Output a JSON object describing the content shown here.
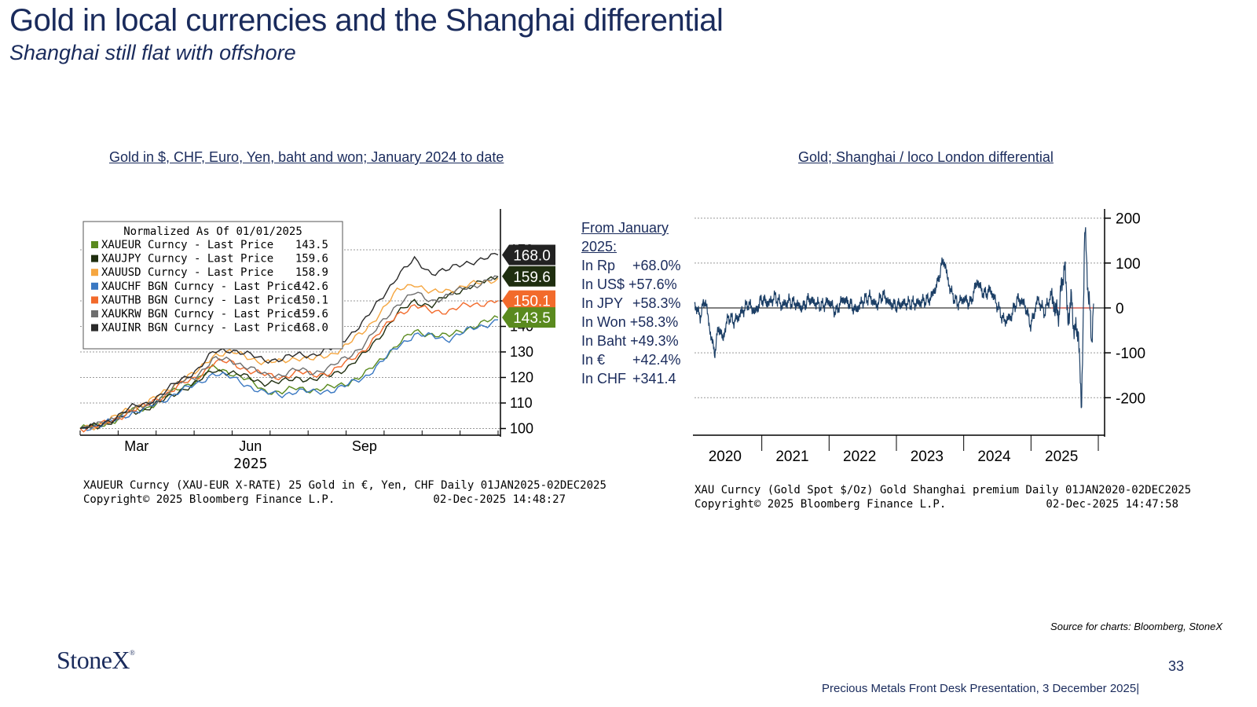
{
  "header": {
    "title": "Gold in local currencies and the Shanghai differential",
    "subtitle": "Shanghai  still flat with offshore"
  },
  "stats": {
    "heading_line1": "From January",
    "heading_line2": "2025:",
    "rows": [
      {
        "label": "In Rp",
        "value": "+68.0%"
      },
      {
        "label": "In US$",
        "value": "+57.6%"
      },
      {
        "label": "In JPY",
        "value": "+58.3%"
      },
      {
        "label": "In Won",
        "value": "+58.3%"
      },
      {
        "label": "In Baht",
        "value": "+49.3%"
      },
      {
        "label": "In €",
        "value": "+42.4%"
      },
      {
        "label": "In CHF",
        "value": "+341.4"
      }
    ]
  },
  "footer": {
    "source": "Source for charts: Bloomberg, StoneX",
    "logo": "StoneX",
    "logo_mark": "®",
    "page_number": "33",
    "presentation": "Precious Metals Front Desk Presentation, 3 December 2025|"
  },
  "chart_data": [
    {
      "type": "line",
      "title": "Gold in $, CHF, Euro, Yen, baht and won; January 2024 to date",
      "legend_title": "Normalized As Of 01/01/2025",
      "legend_placement": "top-left",
      "x_ticks": [
        "Mar",
        "Jun",
        "Sep"
      ],
      "x_year": "2025",
      "x_range": [
        "2025-01-01",
        "2025-12-02"
      ],
      "y_ticks": [
        "100",
        "110",
        "120",
        "130",
        "140",
        "150"
      ],
      "y_top_tick": "170",
      "ylim": [
        98,
        178
      ],
      "grid": true,
      "series": [
        {
          "name": "XAUEUR Curncy - Last Price",
          "last": "143.5",
          "color": "#5a8a1e",
          "t": [
            0,
            0.04,
            0.08,
            0.12,
            0.16,
            0.2,
            0.24,
            0.28,
            0.32,
            0.36,
            0.4,
            0.44,
            0.48,
            0.52,
            0.56,
            0.6,
            0.64,
            0.68,
            0.72,
            0.76,
            0.8,
            0.84,
            0.88,
            0.92,
            0.96,
            1.0
          ],
          "values": [
            100,
            101,
            103,
            107,
            108,
            112,
            116,
            119,
            124,
            122,
            119,
            115,
            114,
            116,
            115,
            116,
            118,
            121,
            127,
            133,
            138,
            137,
            136,
            139,
            141,
            143.5
          ]
        },
        {
          "name": "XAUJPY Curncy - Last Price",
          "last": "159.6",
          "color": "#1f2e0f",
          "t": [
            0,
            0.04,
            0.08,
            0.12,
            0.16,
            0.2,
            0.24,
            0.28,
            0.32,
            0.36,
            0.4,
            0.44,
            0.48,
            0.52,
            0.56,
            0.6,
            0.64,
            0.68,
            0.72,
            0.76,
            0.8,
            0.84,
            0.88,
            0.92,
            0.96,
            1.0
          ],
          "values": [
            100,
            101,
            103,
            106,
            108,
            111,
            115,
            118,
            123,
            122,
            120,
            118,
            118,
            120,
            119,
            121,
            124,
            129,
            137,
            145,
            150,
            148,
            152,
            155,
            157,
            159.6
          ]
        },
        {
          "name": "XAUUSD Curncy - Last Price",
          "last": "158.9",
          "color": "#f5a640",
          "t": [
            0,
            0.04,
            0.08,
            0.12,
            0.16,
            0.2,
            0.24,
            0.28,
            0.32,
            0.36,
            0.4,
            0.44,
            0.48,
            0.52,
            0.56,
            0.6,
            0.64,
            0.68,
            0.72,
            0.76,
            0.8,
            0.84,
            0.88,
            0.92,
            0.96,
            1.0
          ],
          "values": [
            100,
            101,
            104,
            108,
            110,
            114,
            119,
            122,
            129,
            130,
            128,
            126,
            126,
            128,
            127,
            129,
            133,
            138,
            146,
            154,
            157,
            153,
            154,
            156,
            157,
            158.9
          ]
        },
        {
          "name": "XAUCHF BGN Curncy - Last Price",
          "last": "142.6",
          "color": "#3a78c2",
          "t": [
            0,
            0.04,
            0.08,
            0.12,
            0.16,
            0.2,
            0.24,
            0.28,
            0.32,
            0.36,
            0.4,
            0.44,
            0.48,
            0.52,
            0.56,
            0.6,
            0.64,
            0.68,
            0.72,
            0.76,
            0.8,
            0.84,
            0.88,
            0.92,
            0.96,
            1.0
          ],
          "values": [
            100,
            101,
            103,
            106,
            108,
            111,
            115,
            117,
            122,
            120,
            117,
            114,
            113,
            115,
            114,
            115,
            117,
            120,
            126,
            132,
            137,
            136,
            135,
            138,
            140,
            142.6
          ]
        },
        {
          "name": "XAUTHB BGN Curncy - Last Price",
          "last": "150.1",
          "color": "#f26a2b",
          "t": [
            0,
            0.04,
            0.08,
            0.12,
            0.16,
            0.2,
            0.24,
            0.28,
            0.32,
            0.36,
            0.4,
            0.44,
            0.48,
            0.52,
            0.56,
            0.6,
            0.64,
            0.68,
            0.72,
            0.76,
            0.8,
            0.84,
            0.88,
            0.92,
            0.96,
            1.0
          ],
          "values": [
            100,
            101,
            103,
            107,
            109,
            113,
            117,
            120,
            126,
            126,
            123,
            121,
            120,
            122,
            121,
            122,
            126,
            131,
            138,
            145,
            148,
            146,
            146,
            148,
            149,
            150.1
          ]
        },
        {
          "name": "XAUKRW BGN Curncy - Last Price",
          "last": "159.6",
          "color": "#6e6e6e",
          "t": [
            0,
            0.04,
            0.08,
            0.12,
            0.16,
            0.2,
            0.24,
            0.28,
            0.32,
            0.36,
            0.4,
            0.44,
            0.48,
            0.52,
            0.56,
            0.6,
            0.64,
            0.68,
            0.72,
            0.76,
            0.8,
            0.84,
            0.88,
            0.92,
            0.96,
            1.0
          ],
          "values": [
            100,
            101,
            104,
            107,
            109,
            113,
            118,
            121,
            127,
            127,
            124,
            121,
            121,
            123,
            122,
            124,
            128,
            133,
            141,
            149,
            153,
            150,
            152,
            155,
            157,
            159.6
          ]
        },
        {
          "name": "XAUINR BGN Curncy - Last Price",
          "last": "168.0",
          "color": "#2a2a2a",
          "t": [
            0,
            0.04,
            0.08,
            0.12,
            0.16,
            0.2,
            0.24,
            0.28,
            0.32,
            0.36,
            0.4,
            0.44,
            0.48,
            0.52,
            0.56,
            0.6,
            0.64,
            0.68,
            0.72,
            0.76,
            0.8,
            0.84,
            0.88,
            0.92,
            0.96,
            1.0
          ],
          "values": [
            100,
            101,
            104,
            108,
            110,
            114,
            119,
            123,
            130,
            131,
            129,
            127,
            127,
            129,
            129,
            131,
            136,
            142,
            151,
            160,
            166,
            161,
            162,
            165,
            166,
            168.0
          ]
        }
      ],
      "right_tags": [
        {
          "label": "168.0",
          "value": 168.0,
          "color": "#222222"
        },
        {
          "label": "159.6",
          "value": 159.6,
          "color": "#1f2e0f"
        },
        {
          "label": "150.1",
          "value": 150.1,
          "color": "#f26a2b"
        },
        {
          "label": "143.5",
          "value": 143.5,
          "color": "#5a8a1e"
        }
      ],
      "footer_line1": "XAUEUR Curncy (XAU-EUR X-RATE) 25 Gold in €, Yen, CHF Daily 01JAN2025-02DEC2025",
      "footer_line2_left": "Copyright© 2025 Bloomberg Finance L.P.",
      "footer_line2_right": "02-Dec-2025 14:48:27"
    },
    {
      "type": "line",
      "title": "Gold; Shanghai / loco London differential",
      "x_ticks": [
        "2020",
        "2021",
        "2022",
        "2023",
        "2024",
        "2025"
      ],
      "x_range": [
        2020.0,
        2026.0
      ],
      "y_ticks": [
        "200",
        "100",
        "0",
        "-100",
        "-200"
      ],
      "ylim": [
        -280,
        210
      ],
      "grid": true,
      "series": [
        {
          "name": "",
          "color": "#1c3f66",
          "x": [
            2020.0,
            2020.08,
            2020.16,
            2020.24,
            2020.3,
            2020.36,
            2020.42,
            2020.5,
            2020.6,
            2020.7,
            2020.8,
            2020.9,
            2021.0,
            2021.1,
            2021.2,
            2021.3,
            2021.4,
            2021.5,
            2021.6,
            2021.7,
            2021.8,
            2021.9,
            2022.0,
            2022.1,
            2022.2,
            2022.3,
            2022.4,
            2022.5,
            2022.6,
            2022.7,
            2022.8,
            2022.9,
            2023.0,
            2023.1,
            2023.2,
            2023.3,
            2023.4,
            2023.5,
            2023.6,
            2023.7,
            2023.8,
            2023.9,
            2024.0,
            2024.1,
            2024.2,
            2024.3,
            2024.4,
            2024.5,
            2024.6,
            2024.7,
            2024.8,
            2024.9,
            2025.0,
            2025.1,
            2025.2,
            2025.3,
            2025.4,
            2025.5,
            2025.55,
            2025.6,
            2025.65,
            2025.7,
            2025.75,
            2025.8,
            2025.85,
            2025.9,
            2025.93
          ],
          "values": [
            10,
            -20,
            20,
            -60,
            -100,
            -40,
            -70,
            -20,
            -30,
            -10,
            10,
            -10,
            20,
            10,
            25,
            5,
            15,
            10,
            0,
            20,
            10,
            5,
            15,
            -10,
            20,
            10,
            -5,
            15,
            25,
            5,
            30,
            10,
            5,
            10,
            10,
            10,
            15,
            20,
            50,
            110,
            40,
            10,
            20,
            10,
            60,
            30,
            40,
            5,
            -30,
            -20,
            20,
            10,
            -40,
            20,
            -10,
            30,
            -20,
            100,
            -30,
            20,
            -60,
            -40,
            -230,
            180,
            40,
            -70,
            10
          ]
        }
      ],
      "zero_line_color": "#c0392b",
      "footer_line1": "XAU Curncy (Gold Spot   $/Oz) Gold Shanghai premium Daily 01JAN2020-02DEC2025",
      "footer_line2_left": "Copyright© 2025 Bloomberg Finance L.P.",
      "footer_line2_right": "02-Dec-2025 14:47:58"
    }
  ]
}
